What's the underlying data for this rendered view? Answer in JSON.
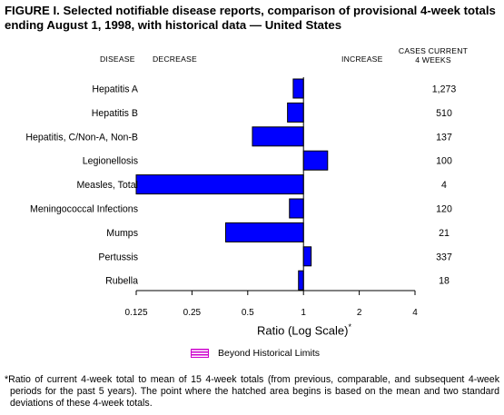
{
  "title": "FIGURE I. Selected notifiable disease reports, comparison of provisional 4-week totals ending August 1, 1998, with historical data — United States",
  "headers": {
    "disease": "DISEASE",
    "decrease": "DECREASE",
    "increase": "INCREASE",
    "cases_line1": "CASES CURRENT",
    "cases_line2": "4 WEEKS"
  },
  "chart_data": {
    "type": "bar",
    "orientation": "horizontal",
    "scale": "log2",
    "baseline": 1,
    "xlim": [
      0.125,
      4
    ],
    "categories": [
      "Hepatitis A",
      "Hepatitis B",
      "Hepatitis, C/Non-A, Non-B",
      "Legionellosis",
      "Measles, Total",
      "Meningococcal Infections",
      "Mumps",
      "Pertussis",
      "Rubella"
    ],
    "values": [
      0.88,
      0.82,
      0.53,
      1.35,
      0.125,
      0.84,
      0.38,
      1.1,
      0.94
    ],
    "cases": [
      "1,273",
      "510",
      "137",
      "100",
      "4",
      "120",
      "21",
      "337",
      "18"
    ],
    "x_ticks": [
      "0.125",
      "0.25",
      "0.5",
      "1",
      "2",
      "4"
    ],
    "x_tick_values": [
      0.125,
      0.25,
      0.5,
      1,
      2,
      4
    ],
    "xlabel": "Ratio (Log Scale)",
    "xlabel_mark": "*",
    "bar_color": "#0000ff",
    "hatch_color": "#cc00cc",
    "legend": "Beyond Historical Limits"
  },
  "footnote": "*Ratio of current 4-week total to mean of 15 4-week totals (from previous, comparable, and subsequent 4-week periods for the past 5 years). The point where the hatched area begins is based on the mean and two standard deviations of these 4-week totals."
}
